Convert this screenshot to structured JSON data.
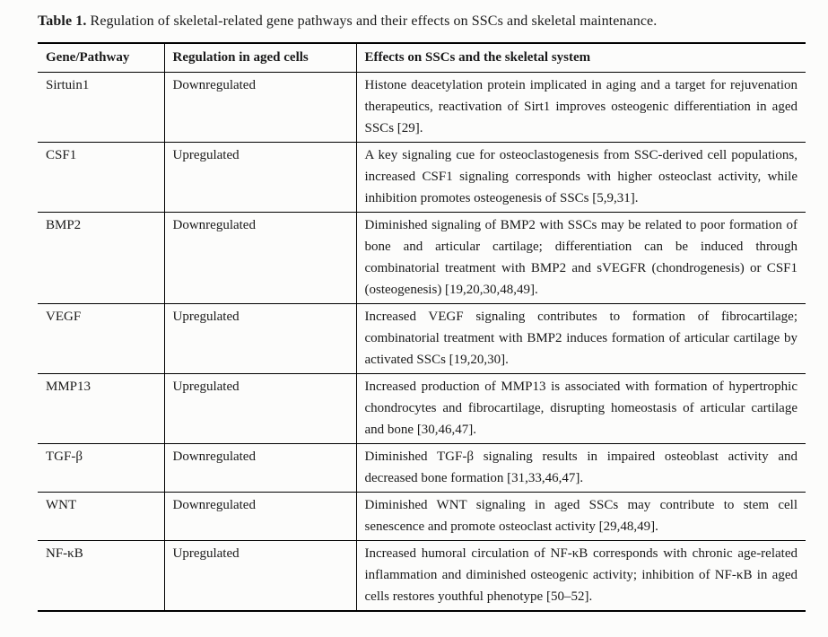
{
  "caption": {
    "prefix": "Table 1.",
    "text": " Regulation of skeletal-related gene pathways and their effects on SSCs and skeletal maintenance."
  },
  "table": {
    "headers": [
      "Gene/Pathway",
      "Regulation in aged cells",
      "Effects on SSCs and the skeletal system"
    ],
    "rows": [
      {
        "gene": "Sirtuin1",
        "regulation": "Downregulated",
        "effects": "Histone deacetylation protein implicated in aging and a target for rejuvenation therapeutics, reactivation of Sirt1 improves osteogenic differentiation in aged SSCs [29]."
      },
      {
        "gene": "CSF1",
        "regulation": "Upregulated",
        "effects": "A key signaling cue for osteoclastogenesis from SSC-derived cell populations, increased CSF1 signaling corresponds with higher osteoclast activity, while inhibition promotes osteogenesis of SSCs [5,9,31]."
      },
      {
        "gene": "BMP2",
        "regulation": "Downregulated",
        "effects": "Diminished signaling of BMP2 with SSCs may be related to poor formation of bone and articular cartilage; differentiation can be induced through combinatorial treatment with BMP2 and sVEGFR (chondrogenesis) or CSF1 (osteogenesis) [19,20,30,48,49]."
      },
      {
        "gene": "VEGF",
        "regulation": "Upregulated",
        "effects": "Increased VEGF signaling contributes to formation of fibrocartilage; combinatorial treatment with BMP2 induces formation of articular cartilage by activated SSCs [19,20,30]."
      },
      {
        "gene": "MMP13",
        "regulation": "Upregulated",
        "effects": "Increased production of MMP13 is associated with formation of hypertrophic chondrocytes and fibrocartilage, disrupting homeostasis of articular cartilage and bone [30,46,47]."
      },
      {
        "gene": "TGF-β",
        "regulation": "Downregulated",
        "effects": "Diminished TGF-β signaling results in impaired osteoblast activity and decreased bone formation [31,33,46,47]."
      },
      {
        "gene": "WNT",
        "regulation": "Downregulated",
        "effects": "Diminished WNT signaling in aged SSCs may contribute to stem cell senescence and promote osteoclast activity [29,48,49]."
      },
      {
        "gene": "NF-κB",
        "regulation": "Upregulated",
        "effects": "Increased humoral circulation of NF-κB corresponds with chronic age-related inflammation and diminished osteogenic activity; inhibition of NF-κB in aged cells restores youthful phenotype [50–52]."
      }
    ]
  },
  "colors": {
    "text": "#1a1a1a",
    "border": "#000000",
    "background": "#fcfcfb"
  }
}
